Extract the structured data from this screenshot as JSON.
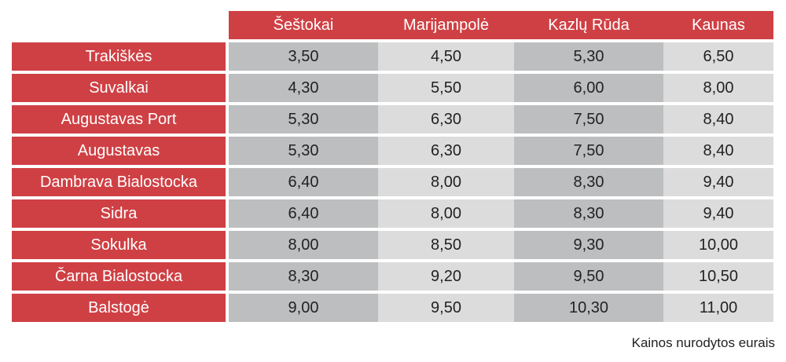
{
  "columns": [
    "Šeštokai",
    "Marijampolė",
    "Kazlų Rūda",
    "Kaunas"
  ],
  "rows": [
    {
      "name": "Trakiškės",
      "values": [
        "3,50",
        "4,50",
        "5,30",
        "6,50"
      ]
    },
    {
      "name": "Suvalkai",
      "values": [
        "4,30",
        "5,50",
        "6,00",
        "8,00"
      ]
    },
    {
      "name": "Augustavas Port",
      "values": [
        "5,30",
        "6,30",
        "7,50",
        "8,40"
      ]
    },
    {
      "name": "Augustavas",
      "values": [
        "5,30",
        "6,30",
        "7,50",
        "8,40"
      ]
    },
    {
      "name": "Dambrava Bialostocka",
      "values": [
        "6,40",
        "8,00",
        "8,30",
        "9,40"
      ]
    },
    {
      "name": "Sidra",
      "values": [
        "6,40",
        "8,00",
        "8,30",
        "9,40"
      ]
    },
    {
      "name": "Sokulka",
      "values": [
        "8,00",
        "8,50",
        "9,30",
        "10,00"
      ]
    },
    {
      "name": "Čarna Bialostocka",
      "values": [
        "8,30",
        "9,20",
        "9,50",
        "10,50"
      ]
    },
    {
      "name": "Balstogė",
      "values": [
        "9,00",
        "9,50",
        "10,30",
        "11,00"
      ]
    }
  ],
  "footnote": "Kainos nurodytos eurais",
  "colors": {
    "header_red": "#cf4044",
    "cell_dark_gray": "#bcbebf",
    "cell_light_gray": "#dcdcdc",
    "header_text": "#ffffff"
  }
}
